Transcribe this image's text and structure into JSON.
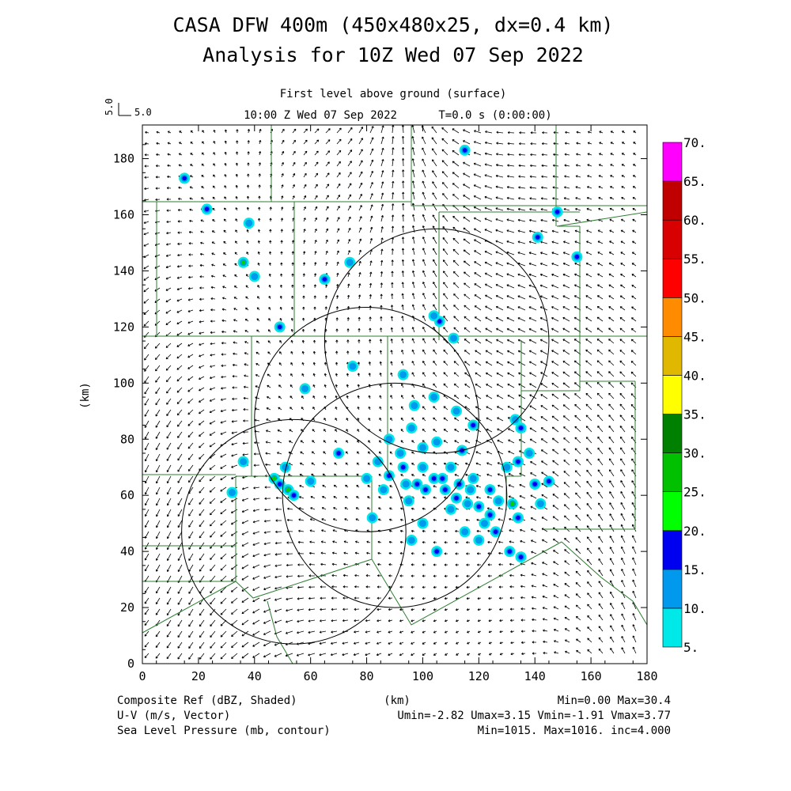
{
  "header": {
    "title_line1": "CASA DFW 400m (450x480x25, dx=0.4 km)",
    "title_line2": "Analysis for 10Z Wed 07 Sep 2022",
    "level_label": "First level above ground (surface)",
    "valid_time": "10:00 Z Wed 07 Sep 2022",
    "time_info": "T=0.0 s (0:00:00)",
    "ref_vector_value": "5.0",
    "ref_vector_side": "5.0"
  },
  "axes": {
    "x_ticks": [
      "0",
      "20",
      "40",
      "60",
      "80",
      "100",
      "120",
      "140",
      "160",
      "180"
    ],
    "y_ticks": [
      "0",
      "20",
      "40",
      "60",
      "80",
      "100",
      "120",
      "140",
      "160",
      "180"
    ],
    "x_label": "(km)",
    "y_label": "(km)",
    "x_range": [
      0,
      180
    ],
    "y_range": [
      0,
      192
    ]
  },
  "colorbar": {
    "labels": [
      "5.",
      "10.",
      "15.",
      "20.",
      "25.",
      "30.",
      "35.",
      "40.",
      "45.",
      "50.",
      "55.",
      "60.",
      "65.",
      "70."
    ],
    "colors": [
      "#00e8e8",
      "#0099ee",
      "#0000f0",
      "#00ff00",
      "#00c000",
      "#008000",
      "#ffff00",
      "#e0b800",
      "#ff8c00",
      "#ff0000",
      "#d80000",
      "#c00000",
      "#ff00ff"
    ]
  },
  "footer": {
    "field1": "Composite Ref (dBZ, Shaded)",
    "field1_stats": "Min=0.00 Max=30.4",
    "field2": "U-V (m/s, Vector)",
    "field2_stats": "Umin=-2.82 Umax=3.15 Vmin=-1.91 Vmax=3.77",
    "field3": "Sea Level Pressure (mb, contour)",
    "field3_stats": "Min=1015. Max=1016. inc=4.000",
    "axis_unit": "(km)"
  },
  "radar_rings": [
    {
      "center_km": [
        54,
        47
      ],
      "radius_km": 40
    },
    {
      "center_km": [
        90,
        60
      ],
      "radius_km": 40
    },
    {
      "center_km": [
        80,
        87
      ],
      "radius_km": 40
    },
    {
      "center_km": [
        105,
        115
      ],
      "radius_km": 40
    }
  ],
  "echoes": [
    {
      "x": 15,
      "y": 173,
      "dbz": 15
    },
    {
      "x": 23,
      "y": 162,
      "dbz": 15
    },
    {
      "x": 38,
      "y": 157,
      "dbz": 10
    },
    {
      "x": 36,
      "y": 143,
      "dbz": 25
    },
    {
      "x": 40,
      "y": 138,
      "dbz": 10
    },
    {
      "x": 49,
      "y": 120,
      "dbz": 15
    },
    {
      "x": 65,
      "y": 137,
      "dbz": 15
    },
    {
      "x": 74,
      "y": 143,
      "dbz": 10
    },
    {
      "x": 115,
      "y": 183,
      "dbz": 15
    },
    {
      "x": 141,
      "y": 152,
      "dbz": 15
    },
    {
      "x": 148,
      "y": 161,
      "dbz": 15
    },
    {
      "x": 155,
      "y": 145,
      "dbz": 15
    },
    {
      "x": 106,
      "y": 122,
      "dbz": 15
    },
    {
      "x": 111,
      "y": 116,
      "dbz": 10
    },
    {
      "x": 104,
      "y": 124,
      "dbz": 10
    },
    {
      "x": 47,
      "y": 66,
      "dbz": 25
    },
    {
      "x": 52,
      "y": 62,
      "dbz": 25
    },
    {
      "x": 49,
      "y": 64,
      "dbz": 15
    },
    {
      "x": 51,
      "y": 70,
      "dbz": 10
    },
    {
      "x": 54,
      "y": 60,
      "dbz": 15
    },
    {
      "x": 70,
      "y": 75,
      "dbz": 15
    },
    {
      "x": 88,
      "y": 67,
      "dbz": 15
    },
    {
      "x": 93,
      "y": 70,
      "dbz": 15
    },
    {
      "x": 98,
      "y": 64,
      "dbz": 15
    },
    {
      "x": 100,
      "y": 70,
      "dbz": 10
    },
    {
      "x": 104,
      "y": 66,
      "dbz": 15
    },
    {
      "x": 108,
      "y": 62,
      "dbz": 15
    },
    {
      "x": 112,
      "y": 59,
      "dbz": 15
    },
    {
      "x": 117,
      "y": 62,
      "dbz": 10
    },
    {
      "x": 120,
      "y": 56,
      "dbz": 15
    },
    {
      "x": 124,
      "y": 53,
      "dbz": 15
    },
    {
      "x": 127,
      "y": 58,
      "dbz": 10
    },
    {
      "x": 132,
      "y": 57,
      "dbz": 25
    },
    {
      "x": 134,
      "y": 52,
      "dbz": 15
    },
    {
      "x": 135,
      "y": 84,
      "dbz": 15
    },
    {
      "x": 133,
      "y": 87,
      "dbz": 10
    },
    {
      "x": 140,
      "y": 64,
      "dbz": 15
    },
    {
      "x": 145,
      "y": 65,
      "dbz": 15
    },
    {
      "x": 142,
      "y": 57,
      "dbz": 10
    },
    {
      "x": 131,
      "y": 40,
      "dbz": 15
    },
    {
      "x": 135,
      "y": 38,
      "dbz": 15
    },
    {
      "x": 105,
      "y": 40,
      "dbz": 15
    },
    {
      "x": 115,
      "y": 47,
      "dbz": 10
    },
    {
      "x": 110,
      "y": 55,
      "dbz": 10
    },
    {
      "x": 95,
      "y": 58,
      "dbz": 10
    },
    {
      "x": 92,
      "y": 75,
      "dbz": 10
    },
    {
      "x": 100,
      "y": 77,
      "dbz": 10
    },
    {
      "x": 84,
      "y": 72,
      "dbz": 10
    },
    {
      "x": 86,
      "y": 62,
      "dbz": 10
    },
    {
      "x": 110,
      "y": 70,
      "dbz": 10
    },
    {
      "x": 114,
      "y": 76,
      "dbz": 15
    },
    {
      "x": 105,
      "y": 79,
      "dbz": 10
    },
    {
      "x": 96,
      "y": 84,
      "dbz": 10
    },
    {
      "x": 88,
      "y": 80,
      "dbz": 10
    },
    {
      "x": 118,
      "y": 66,
      "dbz": 10
    },
    {
      "x": 124,
      "y": 62,
      "dbz": 15
    },
    {
      "x": 126,
      "y": 47,
      "dbz": 15
    },
    {
      "x": 120,
      "y": 44,
      "dbz": 10
    },
    {
      "x": 130,
      "y": 70,
      "dbz": 10
    },
    {
      "x": 134,
      "y": 72,
      "dbz": 15
    },
    {
      "x": 138,
      "y": 75,
      "dbz": 10
    },
    {
      "x": 100,
      "y": 50,
      "dbz": 10
    },
    {
      "x": 96,
      "y": 44,
      "dbz": 10
    },
    {
      "x": 82,
      "y": 52,
      "dbz": 10
    },
    {
      "x": 80,
      "y": 66,
      "dbz": 10
    },
    {
      "x": 60,
      "y": 65,
      "dbz": 10
    },
    {
      "x": 36,
      "y": 72,
      "dbz": 10
    },
    {
      "x": 32,
      "y": 61,
      "dbz": 10
    },
    {
      "x": 118,
      "y": 85,
      "dbz": 15
    },
    {
      "x": 112,
      "y": 90,
      "dbz": 10
    },
    {
      "x": 97,
      "y": 92,
      "dbz": 10
    },
    {
      "x": 104,
      "y": 95,
      "dbz": 10
    },
    {
      "x": 75,
      "y": 106,
      "dbz": 10
    },
    {
      "x": 58,
      "y": 98,
      "dbz": 10
    },
    {
      "x": 93,
      "y": 103,
      "dbz": 10
    },
    {
      "x": 107,
      "y": 66,
      "dbz": 15
    },
    {
      "x": 101,
      "y": 62,
      "dbz": 15
    },
    {
      "x": 94,
      "y": 64,
      "dbz": 10
    },
    {
      "x": 113,
      "y": 64,
      "dbz": 15
    },
    {
      "x": 116,
      "y": 57,
      "dbz": 10
    },
    {
      "x": 122,
      "y": 50,
      "dbz": 10
    }
  ]
}
